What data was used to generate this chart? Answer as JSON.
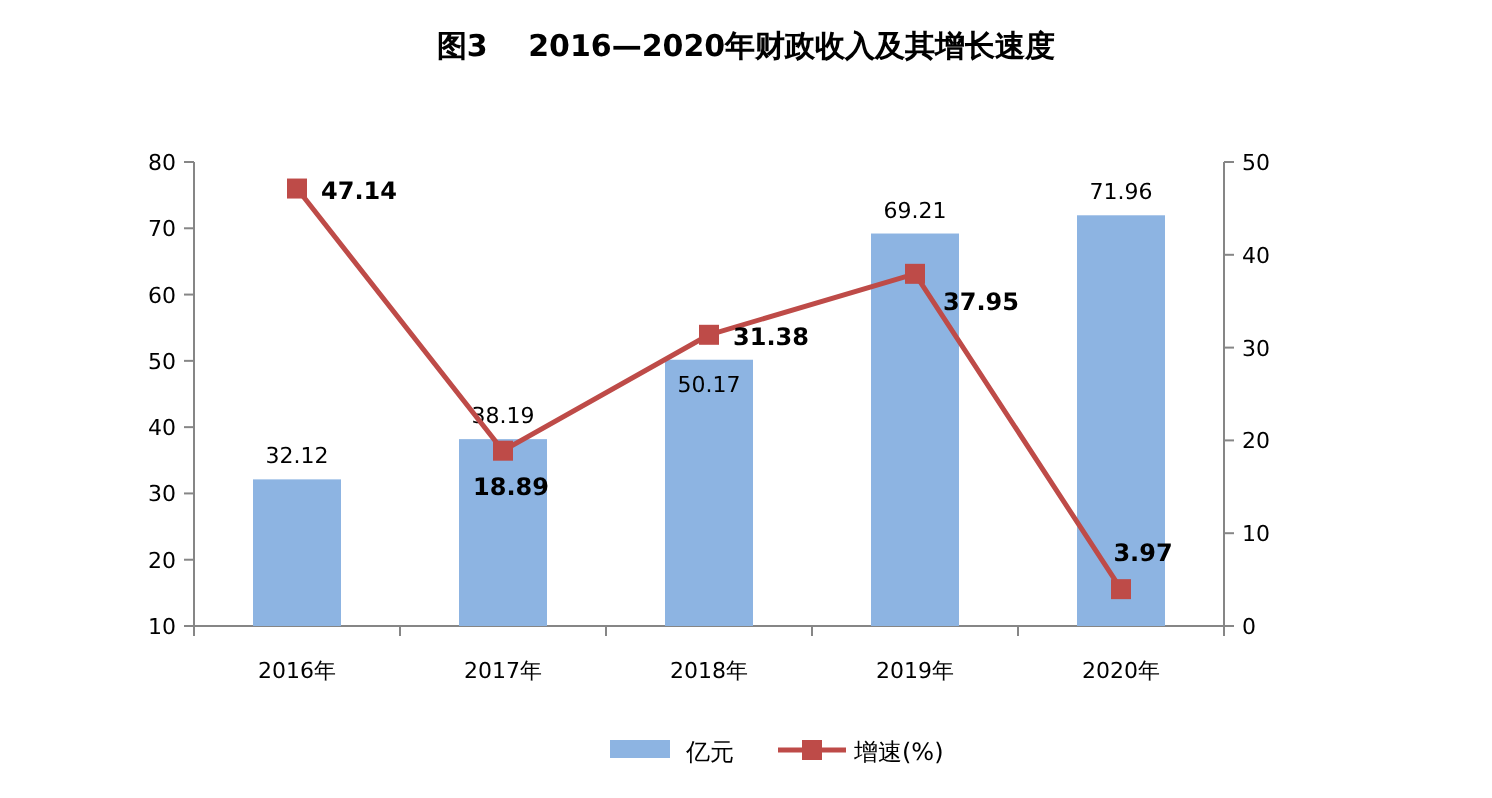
{
  "chart_data": {
    "type": "bar",
    "title": "图3　 2016—2020年财政收入及其增长速度",
    "categories": [
      "2016年",
      "2017年",
      "2018年",
      "2019年",
      "2020年"
    ],
    "series": [
      {
        "name": "亿元",
        "color": "#8db4e2",
        "values": [
          32.12,
          38.19,
          50.17,
          69.21,
          71.96
        ]
      },
      {
        "name": "增速(%)",
        "type": "line",
        "axis": "y2",
        "color": "#be4b48",
        "values": [
          47.14,
          18.89,
          31.38,
          37.95,
          3.97
        ]
      }
    ],
    "ylim": [
      10,
      80
    ],
    "yticks": [
      10,
      20,
      30,
      40,
      50,
      60,
      70,
      80
    ],
    "y2lim": [
      0,
      50
    ],
    "y2ticks": [
      0,
      10,
      20,
      30,
      40,
      50
    ],
    "marker": "square",
    "data_labels": true,
    "legend": "bottom",
    "grid": false
  }
}
